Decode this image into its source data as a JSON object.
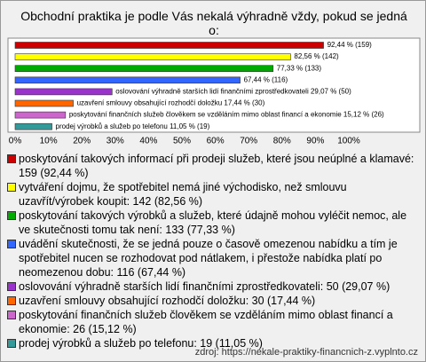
{
  "chart_data": {
    "type": "hbar",
    "title": "Obchodní praktika je podle Vás nekalá výhradně vždy, pokud se jedná o:",
    "categories": [
      "poskytování takových informací při prodeji služeb, které jsou neúplné a klamavé: 159 (92,44 %)",
      "vytváření dojmu, že spotřebitel nemá jiné východisko, než smlouvu uzavřít/výrobek koupit: 142 (82,56 %)",
      "poskytování takových výrobků a služeb, které údajně mohou vyléčit nemoc, ale ve skutečnosti tomu tak není: 133 (77,33 %)",
      "uvádění skutečnosti, že se jedná pouze o časově omezenou nabídku a tím je spotřebitel nucen se rozhodovat pod nátlakem, i přestože nabídka platí po neomezenou dobu: 116 (67,44 %)",
      "oslovování výhradně starších lidí finančními zprostředkovateli: 50 (29,07 %)",
      "uzavření smlouvy obsahující rozhodčí doložku: 30 (17,44 %)",
      "poskytování finančních služeb člověkem se vzděláním mimo oblast financí a ekonomie: 26 (15,12 %)",
      "prodej výrobků a služeb po telefonu: 19 (11,05 %)"
    ],
    "series": [
      {
        "values": [
          92.44,
          82.56,
          77.33,
          67.44,
          29.07,
          17.44,
          15.12,
          11.05
        ],
        "value_labels": [
          "92,44 % (159)",
          "82,56 % (142)",
          "77,33 % (133)",
          "67,44 % (116)",
          "oslovování výhradně starších lidí finančními zprostředkovateli 29,07 % (50)",
          "uzavření smlouvy obsahující rozhodčí doložku 17,44 % (30)",
          "poskytování finančních služeb člověkem se vzděláním mimo oblast financí a ekonomie 15,12 % (26)",
          "prodej výrobků a služeb po telefonu 11,05 % (19)"
        ],
        "colors": [
          "#cc0000",
          "#ffff00",
          "#00aa00",
          "#3366ff",
          "#9933cc",
          "#ff6600",
          "#cc66cc",
          "#339999"
        ]
      }
    ],
    "xlim": [
      0,
      100
    ],
    "xticks": [
      {
        "value": 0,
        "label": "0%"
      },
      {
        "value": 10,
        "label": "10%"
      },
      {
        "value": 20,
        "label": "20%"
      },
      {
        "value": 30,
        "label": "30%"
      },
      {
        "value": 40,
        "label": "40%"
      },
      {
        "value": 50,
        "label": "50%"
      },
      {
        "value": 60,
        "label": "60%"
      },
      {
        "value": 70,
        "label": "70%"
      },
      {
        "value": 80,
        "label": "80%"
      },
      {
        "value": 90,
        "label": "90%"
      },
      {
        "value": 100,
        "label": "100%"
      }
    ],
    "source": "zdroj: https://nekale-praktiky-financnich-z.vyplnto.cz"
  }
}
